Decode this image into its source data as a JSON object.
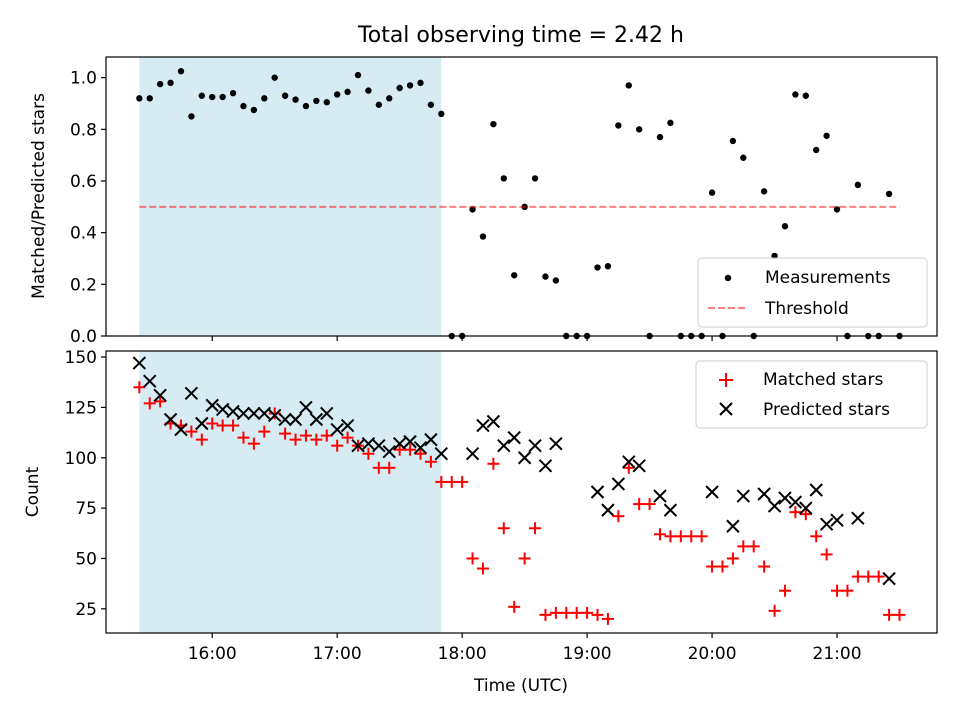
{
  "title": "Total observing time = 2.42 h",
  "colors": {
    "shade": "#add8e6",
    "measurements": "#000000",
    "threshold": "#ff0000",
    "matched": "#ff0000",
    "predicted": "#000000"
  },
  "chart_data": [
    {
      "type": "scatter",
      "ylabel": "Matched/Predicted stars",
      "ylim": [
        0,
        1.08
      ],
      "xlim": [
        "15:09",
        "21:48"
      ],
      "shaded_interval": [
        "15:25",
        "17:50"
      ],
      "yticks": [
        "0.0",
        "0.2",
        "0.4",
        "0.6",
        "0.8",
        "1.0"
      ],
      "yticks_values": [
        0,
        0.2,
        0.4,
        0.6,
        0.8,
        1.0
      ],
      "legend_position": "lower right",
      "legend": [
        "Measurements",
        "Threshold"
      ],
      "threshold": {
        "name": "Threshold",
        "y": 0.5,
        "x_range": [
          "15:25",
          "21:30"
        ]
      },
      "series": [
        {
          "name": "Measurements",
          "marker": "dot",
          "points": [
            [
              "15:25",
              0.92
            ],
            [
              "15:30",
              0.92
            ],
            [
              "15:35",
              0.975
            ],
            [
              "15:40",
              0.98
            ],
            [
              "15:45",
              1.025
            ],
            [
              "15:50",
              0.85
            ],
            [
              "15:55",
              0.93
            ],
            [
              "16:00",
              0.925
            ],
            [
              "16:05",
              0.925
            ],
            [
              "16:10",
              0.94
            ],
            [
              "16:15",
              0.89
            ],
            [
              "16:20",
              0.875
            ],
            [
              "16:25",
              0.92
            ],
            [
              "16:30",
              1.0
            ],
            [
              "16:35",
              0.93
            ],
            [
              "16:40",
              0.915
            ],
            [
              "16:45",
              0.89
            ],
            [
              "16:50",
              0.91
            ],
            [
              "16:55",
              0.905
            ],
            [
              "17:00",
              0.935
            ],
            [
              "17:05",
              0.945
            ],
            [
              "17:10",
              1.01
            ],
            [
              "17:15",
              0.95
            ],
            [
              "17:20",
              0.895
            ],
            [
              "17:25",
              0.92
            ],
            [
              "17:30",
              0.96
            ],
            [
              "17:35",
              0.97
            ],
            [
              "17:40",
              0.98
            ],
            [
              "17:45",
              0.895
            ],
            [
              "17:50",
              0.86
            ],
            [
              "17:55",
              0.0
            ],
            [
              "18:00",
              0.0
            ],
            [
              "18:05",
              0.49
            ],
            [
              "18:10",
              0.385
            ],
            [
              "18:15",
              0.82
            ],
            [
              "18:20",
              0.61
            ],
            [
              "18:25",
              0.235
            ],
            [
              "18:30",
              0.5
            ],
            [
              "18:35",
              0.61
            ],
            [
              "18:40",
              0.23
            ],
            [
              "18:45",
              0.215
            ],
            [
              "18:50",
              0.0
            ],
            [
              "18:55",
              0.0
            ],
            [
              "19:00",
              0.0
            ],
            [
              "19:05",
              0.265
            ],
            [
              "19:10",
              0.27
            ],
            [
              "19:15",
              0.815
            ],
            [
              "19:20",
              0.97
            ],
            [
              "19:25",
              0.8
            ],
            [
              "19:30",
              0.0
            ],
            [
              "19:35",
              0.77
            ],
            [
              "19:40",
              0.825
            ],
            [
              "19:45",
              0.0
            ],
            [
              "19:50",
              0.0
            ],
            [
              "19:55",
              0.0
            ],
            [
              "20:00",
              0.555
            ],
            [
              "20:05",
              0.0
            ],
            [
              "20:10",
              0.755
            ],
            [
              "20:15",
              0.69
            ],
            [
              "20:20",
              0.0
            ],
            [
              "20:25",
              0.56
            ],
            [
              "20:30",
              0.31
            ],
            [
              "20:35",
              0.425
            ],
            [
              "20:40",
              0.935
            ],
            [
              "20:45",
              0.93
            ],
            [
              "20:50",
              0.72
            ],
            [
              "20:55",
              0.775
            ],
            [
              "21:00",
              0.49
            ],
            [
              "21:05",
              0.0
            ],
            [
              "21:10",
              0.585
            ],
            [
              "21:15",
              0.0
            ],
            [
              "21:20",
              0.0
            ],
            [
              "21:25",
              0.55
            ],
            [
              "21:30",
              0.0
            ]
          ]
        }
      ]
    },
    {
      "type": "scatter",
      "ylabel": "Count",
      "xlabel": "Time (UTC)",
      "ylim": [
        13,
        153
      ],
      "xlim": [
        "15:09",
        "21:48"
      ],
      "shaded_interval": [
        "15:25",
        "17:50"
      ],
      "yticks": [
        "25",
        "50",
        "75",
        "100",
        "125",
        "150"
      ],
      "yticks_values": [
        25,
        50,
        75,
        100,
        125,
        150
      ],
      "xticks": [
        "16:00",
        "17:00",
        "18:00",
        "19:00",
        "20:00",
        "21:00"
      ],
      "xticks_values": [
        "16:00",
        "17:00",
        "18:00",
        "19:00",
        "20:00",
        "21:00"
      ],
      "legend_position": "upper right",
      "legend": [
        "Matched stars",
        "Predicted stars"
      ],
      "x": [
        "15:25",
        "15:30",
        "15:35",
        "15:40",
        "15:45",
        "15:50",
        "15:55",
        "16:00",
        "16:05",
        "16:10",
        "16:15",
        "16:20",
        "16:25",
        "16:30",
        "16:35",
        "16:40",
        "16:45",
        "16:50",
        "16:55",
        "17:00",
        "17:05",
        "17:10",
        "17:15",
        "17:20",
        "17:25",
        "17:30",
        "17:35",
        "17:40",
        "17:45",
        "17:50",
        "17:55",
        "18:00",
        "18:05",
        "18:10",
        "18:15",
        "18:20",
        "18:25",
        "18:30",
        "18:35",
        "18:40",
        "18:45",
        "18:50",
        "18:55",
        "19:00",
        "19:05",
        "19:10",
        "19:15",
        "19:20",
        "19:25",
        "19:30",
        "19:35",
        "19:40",
        "19:45",
        "19:50",
        "19:55",
        "20:00",
        "20:05",
        "20:10",
        "20:15",
        "20:20",
        "20:25",
        "20:30",
        "20:35",
        "20:40",
        "20:45",
        "20:50",
        "20:55",
        "21:00",
        "21:05",
        "21:10",
        "21:15",
        "21:20",
        "21:25",
        "21:30"
      ],
      "series": [
        {
          "name": "Matched stars",
          "marker": "plus",
          "values": [
            135,
            127,
            128,
            117,
            116,
            113,
            109,
            117,
            116,
            116,
            110,
            107,
            113,
            122,
            112,
            109,
            111,
            109,
            111,
            106,
            110,
            106,
            102,
            95,
            95,
            104,
            104,
            102,
            98,
            88,
            88,
            88,
            50,
            45,
            97,
            65,
            26,
            50,
            65,
            22,
            23,
            23,
            23,
            23,
            22,
            20,
            71,
            95,
            77,
            77,
            62,
            61,
            61,
            61,
            61,
            46,
            46,
            50,
            56,
            56,
            46,
            24,
            34,
            73,
            72,
            61,
            52,
            34,
            34,
            41,
            41,
            41,
            22,
            22
          ]
        },
        {
          "name": "Predicted stars",
          "marker": "x",
          "values": [
            147,
            138,
            131,
            119,
            114,
            132,
            117,
            126,
            124,
            123,
            122,
            122,
            122,
            121,
            119,
            119,
            125,
            119,
            122,
            114,
            116,
            106,
            107,
            106,
            103,
            107,
            108,
            105,
            109,
            102,
            null,
            null,
            102,
            116,
            118,
            106,
            110,
            100,
            106,
            96,
            107,
            null,
            null,
            null,
            83,
            74,
            87,
            98,
            96,
            null,
            81,
            74,
            null,
            null,
            null,
            83,
            null,
            66,
            81,
            null,
            82,
            76,
            80,
            78,
            75,
            84,
            67,
            69,
            null,
            70,
            null,
            null,
            40,
            null
          ]
        }
      ]
    }
  ]
}
